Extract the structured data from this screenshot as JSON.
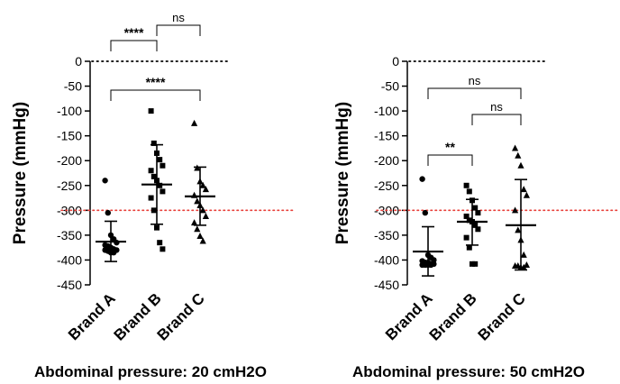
{
  "chart_data": [
    {
      "type": "scatter",
      "xlabel": "Abdominal pressure: 20 cmH2O",
      "ylabel": "Pressure  (mmHg)",
      "ylim": [
        -450,
        0
      ],
      "yticks": [
        0,
        -50,
        -100,
        -150,
        -200,
        -250,
        -300,
        -350,
        -400,
        -450
      ],
      "reference_lines": [
        {
          "y": 0,
          "style": "dotted",
          "color": "#000000"
        },
        {
          "y": -300,
          "style": "dotted",
          "color": "#e8403a"
        }
      ],
      "categories": [
        "Brand A",
        "Brand B",
        "Brand C"
      ],
      "series": [
        {
          "marker": "circle",
          "mean": -363,
          "sd_upper": -322,
          "sd_lower": -403,
          "values": [
            -240,
            -305,
            -350,
            -358,
            -365,
            -370,
            -372,
            -375,
            -378,
            -380,
            -380,
            -382,
            -385,
            -385
          ]
        },
        {
          "marker": "square",
          "mean": -248,
          "sd_upper": -168,
          "sd_lower": -328,
          "values": [
            -100,
            -165,
            -185,
            -198,
            -210,
            -220,
            -232,
            -240,
            -250,
            -262,
            -275,
            -300,
            -335,
            -365,
            -378
          ]
        },
        {
          "marker": "triangle",
          "mean": -272,
          "sd_upper": -213,
          "sd_lower": -330,
          "values": [
            -125,
            -215,
            -242,
            -250,
            -258,
            -270,
            -282,
            -290,
            -300,
            -312,
            -325,
            -338,
            -352,
            -362
          ]
        }
      ],
      "comparisons": [
        {
          "from": 0,
          "to": 1,
          "label": "****",
          "y": 45
        },
        {
          "from": 1,
          "to": 2,
          "label": "ns",
          "y": 28
        },
        {
          "from": 0,
          "to": 2,
          "label": "****",
          "y": 100
        }
      ]
    },
    {
      "type": "scatter",
      "xlabel": "Abdominal pressure: 50 cmH2O",
      "ylabel": "Pressure  (mmHg)",
      "ylim": [
        -450,
        0
      ],
      "yticks": [
        0,
        -50,
        -100,
        -150,
        -200,
        -250,
        -300,
        -350,
        -400,
        -450
      ],
      "reference_lines": [
        {
          "y": 0,
          "style": "dotted",
          "color": "#000000"
        },
        {
          "y": -300,
          "style": "dotted",
          "color": "#e8403a"
        }
      ],
      "categories": [
        "Brand A",
        "Brand B",
        "Brand C"
      ],
      "series": [
        {
          "marker": "circle",
          "mean": -383,
          "sd_upper": -333,
          "sd_lower": -432,
          "values": [
            -237,
            -305,
            -390,
            -395,
            -400,
            -402,
            -405,
            -405,
            -408,
            -408,
            -410,
            -410,
            -410,
            -410
          ]
        },
        {
          "marker": "square",
          "mean": -323,
          "sd_upper": -278,
          "sd_lower": -370,
          "values": [
            -250,
            -262,
            -280,
            -295,
            -305,
            -312,
            -320,
            -323,
            -330,
            -338,
            -355,
            -375,
            -408,
            -408
          ]
        },
        {
          "marker": "triangle",
          "mean": -330,
          "sd_upper": -238,
          "sd_lower": -420,
          "values": [
            -175,
            -190,
            -210,
            -258,
            -270,
            -300,
            -340,
            -360,
            -390,
            -410,
            -412,
            -412,
            -415,
            -415
          ]
        }
      ],
      "comparisons": [
        {
          "from": 0,
          "to": 1,
          "label": "**",
          "y": 172
        },
        {
          "from": 1,
          "to": 2,
          "label": "ns",
          "y": 127
        },
        {
          "from": 0,
          "to": 2,
          "label": "ns",
          "y": 98
        }
      ]
    }
  ]
}
